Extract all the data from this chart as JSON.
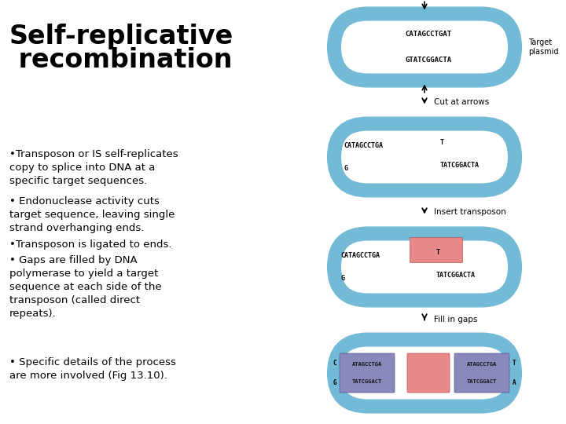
{
  "title_line1": "Self-replicative",
  "title_line2": " recombination",
  "bullet1": "•Transposon or IS self-replicates\ncopy to splice into DNA at a\nspecific target sequences.",
  "bullet2": "• Endonuclease activity cuts\ntarget sequence, leaving single\nstrand overhanging ends.",
  "bullet3": "•Transposon is ligated to ends.",
  "bullet4": "• Gaps are filled by DNA\npolymerase to yield a target\nsequence at each side of the\ntransposon (called direct\nrepeats).",
  "bullet5": "• Specific details of the process\nare more involved (Fig 13.10).",
  "plasmid_color": "#72BAD5",
  "plasmid_lw": 13,
  "transposon_color": "#E88888",
  "direct_repeat_color": "#8888BB",
  "bg_color": "#FFFFFF",
  "text_color": "#000000",
  "label_target": "Target\nplasmid",
  "label_cut": "Cut at arrows",
  "label_insert": "Insert transposon",
  "label_fill": "Fill in gaps",
  "seq1a": "CATAGCCTGAT",
  "seq1b": "GTATCGGACTA",
  "seq2a": "CATAGCCTGA",
  "seq2b": "G",
  "seq2c": "T",
  "seq2d": "TATCGGACTA",
  "seq_dr": "ATAGCCTGA\nTATCGGACT"
}
